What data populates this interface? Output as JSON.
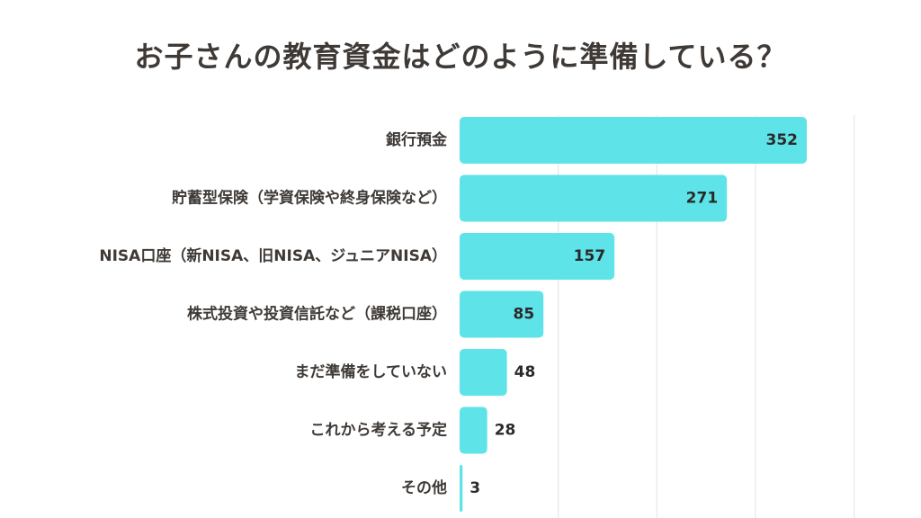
{
  "chart_data": {
    "type": "bar",
    "orientation": "horizontal",
    "title": "お子さんの教育資金はどのように準備している？",
    "categories": [
      "銀行預金",
      "貯蓄型保険（学資保険や終身保険など）",
      "NISA口座（新NISA、旧NISA、ジュニアNISA）",
      "株式投資や投資信託など（課税口座）",
      "まだ準備をしていない",
      "これから考える予定",
      "その他"
    ],
    "values": [
      352,
      271,
      157,
      85,
      48,
      28,
      3
    ],
    "xlim": [
      0,
      400
    ],
    "grid": true,
    "bar_color": "#5ee3e8",
    "grid_color": "#e8e8e8"
  }
}
